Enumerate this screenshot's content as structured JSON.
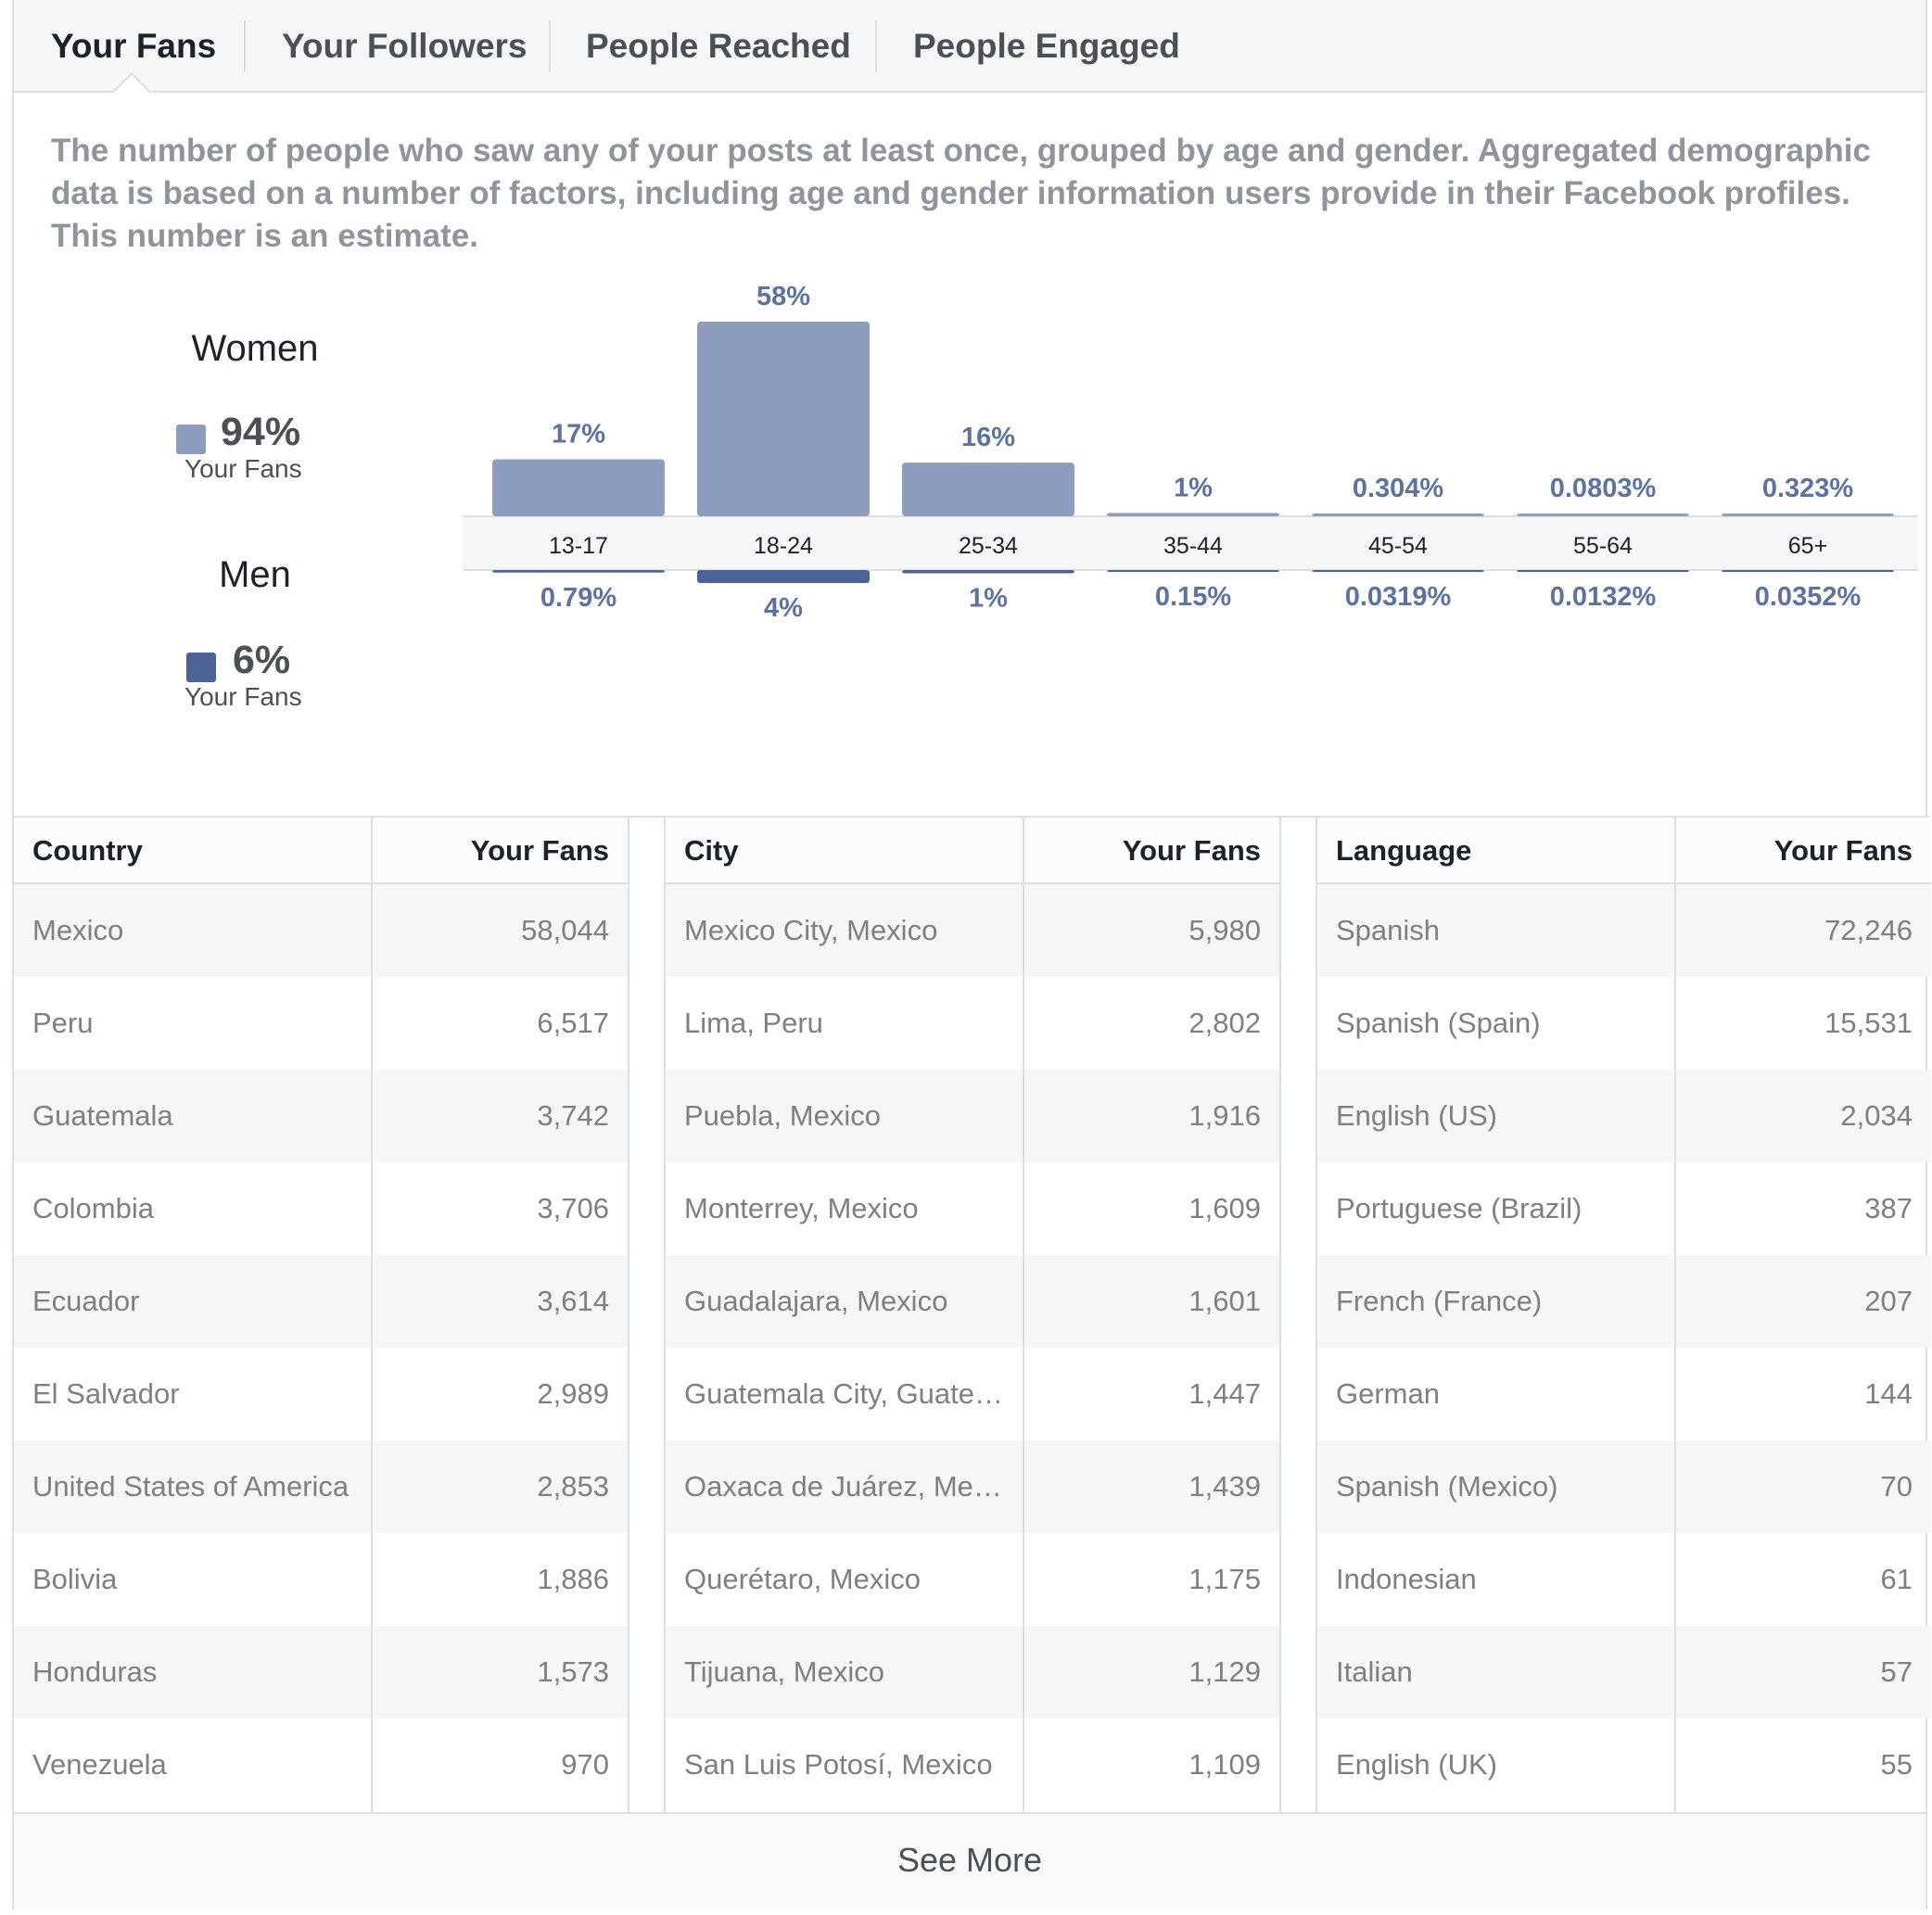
{
  "tabs": [
    "Your Fans",
    "Your Followers",
    "People Reached",
    "People Engaged"
  ],
  "active_tab": 0,
  "description": "The number of people who saw any of your posts at least once, grouped by age and gender. Aggregated demographic data is based on a number of factors, including age and gender information users provide in their Facebook profiles. This number is an estimate.",
  "gender": {
    "women": {
      "title": "Women",
      "percent": "94%",
      "sub": "Your Fans",
      "color": "#8c9dc0"
    },
    "men": {
      "title": "Men",
      "percent": "6%",
      "sub": "Your Fans",
      "color": "#4b6396"
    }
  },
  "chart_data": {
    "type": "bar",
    "categories": [
      "13-17",
      "18-24",
      "25-34",
      "35-44",
      "45-54",
      "55-64",
      "65+"
    ],
    "series": [
      {
        "name": "Women",
        "values": [
          17,
          58,
          16,
          1,
          0.304,
          0.0803,
          0.323
        ],
        "labels": [
          "17%",
          "58%",
          "16%",
          "1%",
          "0.304%",
          "0.0803%",
          "0.323%"
        ],
        "color": "#8c9dc0"
      },
      {
        "name": "Men",
        "values": [
          0.79,
          4,
          1,
          0.15,
          0.0319,
          0.0132,
          0.0352
        ],
        "labels": [
          "0.79%",
          "4%",
          "1%",
          "0.15%",
          "0.0319%",
          "0.0132%",
          "0.0352%"
        ],
        "color": "#4b6396"
      }
    ]
  },
  "tables": [
    {
      "headers": [
        "Country",
        "Your Fans"
      ],
      "rows": [
        [
          "Mexico",
          "58,044"
        ],
        [
          "Peru",
          "6,517"
        ],
        [
          "Guatemala",
          "3,742"
        ],
        [
          "Colombia",
          "3,706"
        ],
        [
          "Ecuador",
          "3,614"
        ],
        [
          "El Salvador",
          "2,989"
        ],
        [
          "United States of America",
          "2,853"
        ],
        [
          "Bolivia",
          "1,886"
        ],
        [
          "Honduras",
          "1,573"
        ],
        [
          "Venezuela",
          "970"
        ]
      ]
    },
    {
      "headers": [
        "City",
        "Your Fans"
      ],
      "rows": [
        [
          "Mexico City, Mexico",
          "5,980"
        ],
        [
          "Lima, Peru",
          "2,802"
        ],
        [
          "Puebla, Mexico",
          "1,916"
        ],
        [
          "Monterrey, Mexico",
          "1,609"
        ],
        [
          "Guadalajara, Mexico",
          "1,601"
        ],
        [
          "Guatemala City, Guate…",
          "1,447"
        ],
        [
          "Oaxaca de Juárez, Me…",
          "1,439"
        ],
        [
          "Querétaro, Mexico",
          "1,175"
        ],
        [
          "Tijuana, Mexico",
          "1,129"
        ],
        [
          "San Luis Potosí, Mexico",
          "1,109"
        ]
      ]
    },
    {
      "headers": [
        "Language",
        "Your Fans"
      ],
      "rows": [
        [
          "Spanish",
          "72,246"
        ],
        [
          "Spanish (Spain)",
          "15,531"
        ],
        [
          "English (US)",
          "2,034"
        ],
        [
          "Portuguese (Brazil)",
          "387"
        ],
        [
          "French (France)",
          "207"
        ],
        [
          "German",
          "144"
        ],
        [
          "Spanish (Mexico)",
          "70"
        ],
        [
          "Indonesian",
          "61"
        ],
        [
          "Italian",
          "57"
        ],
        [
          "English (UK)",
          "55"
        ]
      ]
    }
  ],
  "see_more": "See More"
}
